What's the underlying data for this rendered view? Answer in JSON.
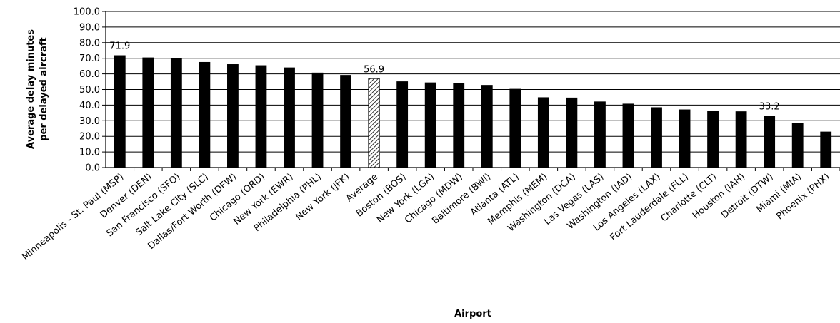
{
  "chart_data": {
    "type": "bar",
    "title": "",
    "xlabel": "Airport",
    "ylabel": "Average delay minutes per delayed aircraft",
    "ylabel_lines": [
      "Average delay minutes",
      "per delayed aircraft"
    ],
    "ylim": [
      0,
      100
    ],
    "ytick_step": 10,
    "yticks": [
      "0.0",
      "10.0",
      "20.0",
      "30.0",
      "40.0",
      "50.0",
      "60.0",
      "70.0",
      "80.0",
      "90.0",
      "100.0"
    ],
    "grid": true,
    "categories": [
      "Minneapolis - St. Paul (MSP)",
      "Denver (DEN)",
      "San Francisco (SFO)",
      "Salt Lake City (SLC)",
      "Dallas/Fort Worth (DFW)",
      "Chicago (ORD)",
      "New York (EWR)",
      "Philadelphia (PHL)",
      "New York (JFK)",
      "Average",
      "Boston (BOS)",
      "New York (LGA)",
      "Chicago (MDW)",
      "Baltimore (BWI)",
      "Atlanta (ATL)",
      "Memphis (MEM)",
      "Washington (DCA)",
      "Las Vegas (LAS)",
      "Washington (IAD)",
      "Los Angeles (LAX)",
      "Fort Lauderdale (FLL)",
      "Charlotte (CLT)",
      "Houston (IAH)",
      "Detroit (DTW)",
      "Miami (MIA)",
      "Phoenix (PHX)"
    ],
    "values": [
      71.9,
      70.5,
      70.3,
      67.6,
      66.2,
      65.5,
      64.1,
      60.8,
      59.3,
      56.9,
      55.2,
      54.5,
      54.0,
      52.9,
      50.4,
      45.0,
      44.8,
      42.3,
      40.9,
      38.6,
      37.2,
      36.4,
      36.0,
      33.2,
      28.7,
      23.0
    ],
    "highlight": "Average",
    "bar_color": "#000000",
    "highlight_color": "#ffffff",
    "annotations": [
      {
        "category": "Minneapolis - St. Paul (MSP)",
        "text": "71.9"
      },
      {
        "category": "Average",
        "text": "56.9"
      },
      {
        "category": "Detroit (DTW)",
        "text": "33.2"
      }
    ]
  }
}
